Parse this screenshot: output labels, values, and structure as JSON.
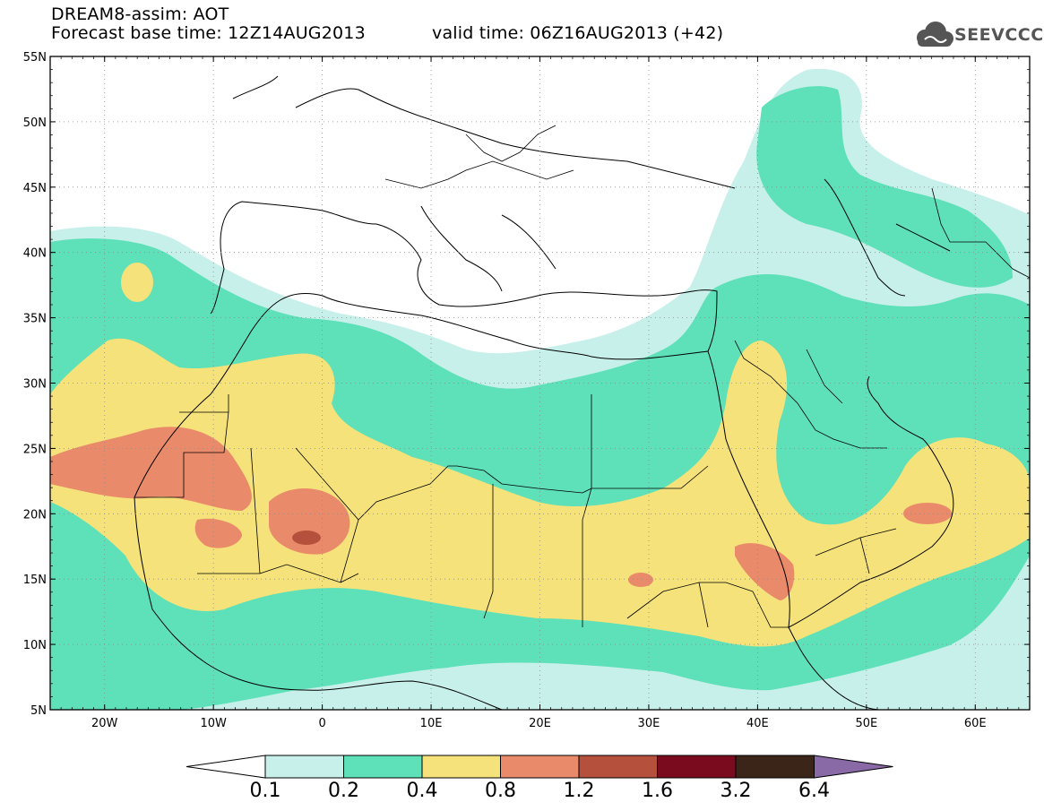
{
  "header": {
    "line1": "DREAM8-assim: AOT",
    "line2": "Forecast base time: 12Z14AUG2013",
    "valid": "valid time: 06Z16AUG2013 (+42)"
  },
  "logo": {
    "text": "SEEVCCC",
    "icon": "cloud-icon"
  },
  "map": {
    "lat_range": [
      5,
      55
    ],
    "lon_range": [
      -25,
      65
    ],
    "lat_ticks": [
      "55N",
      "50N",
      "45N",
      "40N",
      "35N",
      "30N",
      "25N",
      "20N",
      "15N",
      "10N",
      "5N"
    ],
    "lon_ticks": [
      "20W",
      "10W",
      "0",
      "10E",
      "20E",
      "30E",
      "40E",
      "50E",
      "60E"
    ],
    "grid": true,
    "field": "Aerosol Optical Thickness"
  },
  "colorbar": {
    "labels": [
      "0.1",
      "0.2",
      "0.4",
      "0.8",
      "1.2",
      "1.6",
      "3.2",
      "6.4"
    ],
    "colors": [
      "#ffffff",
      "#c7f0ea",
      "#5ee0b8",
      "#f5e27a",
      "#e98a6a",
      "#b4503c",
      "#7a0a1e",
      "#3b2418",
      "#8a6aa6"
    ]
  }
}
